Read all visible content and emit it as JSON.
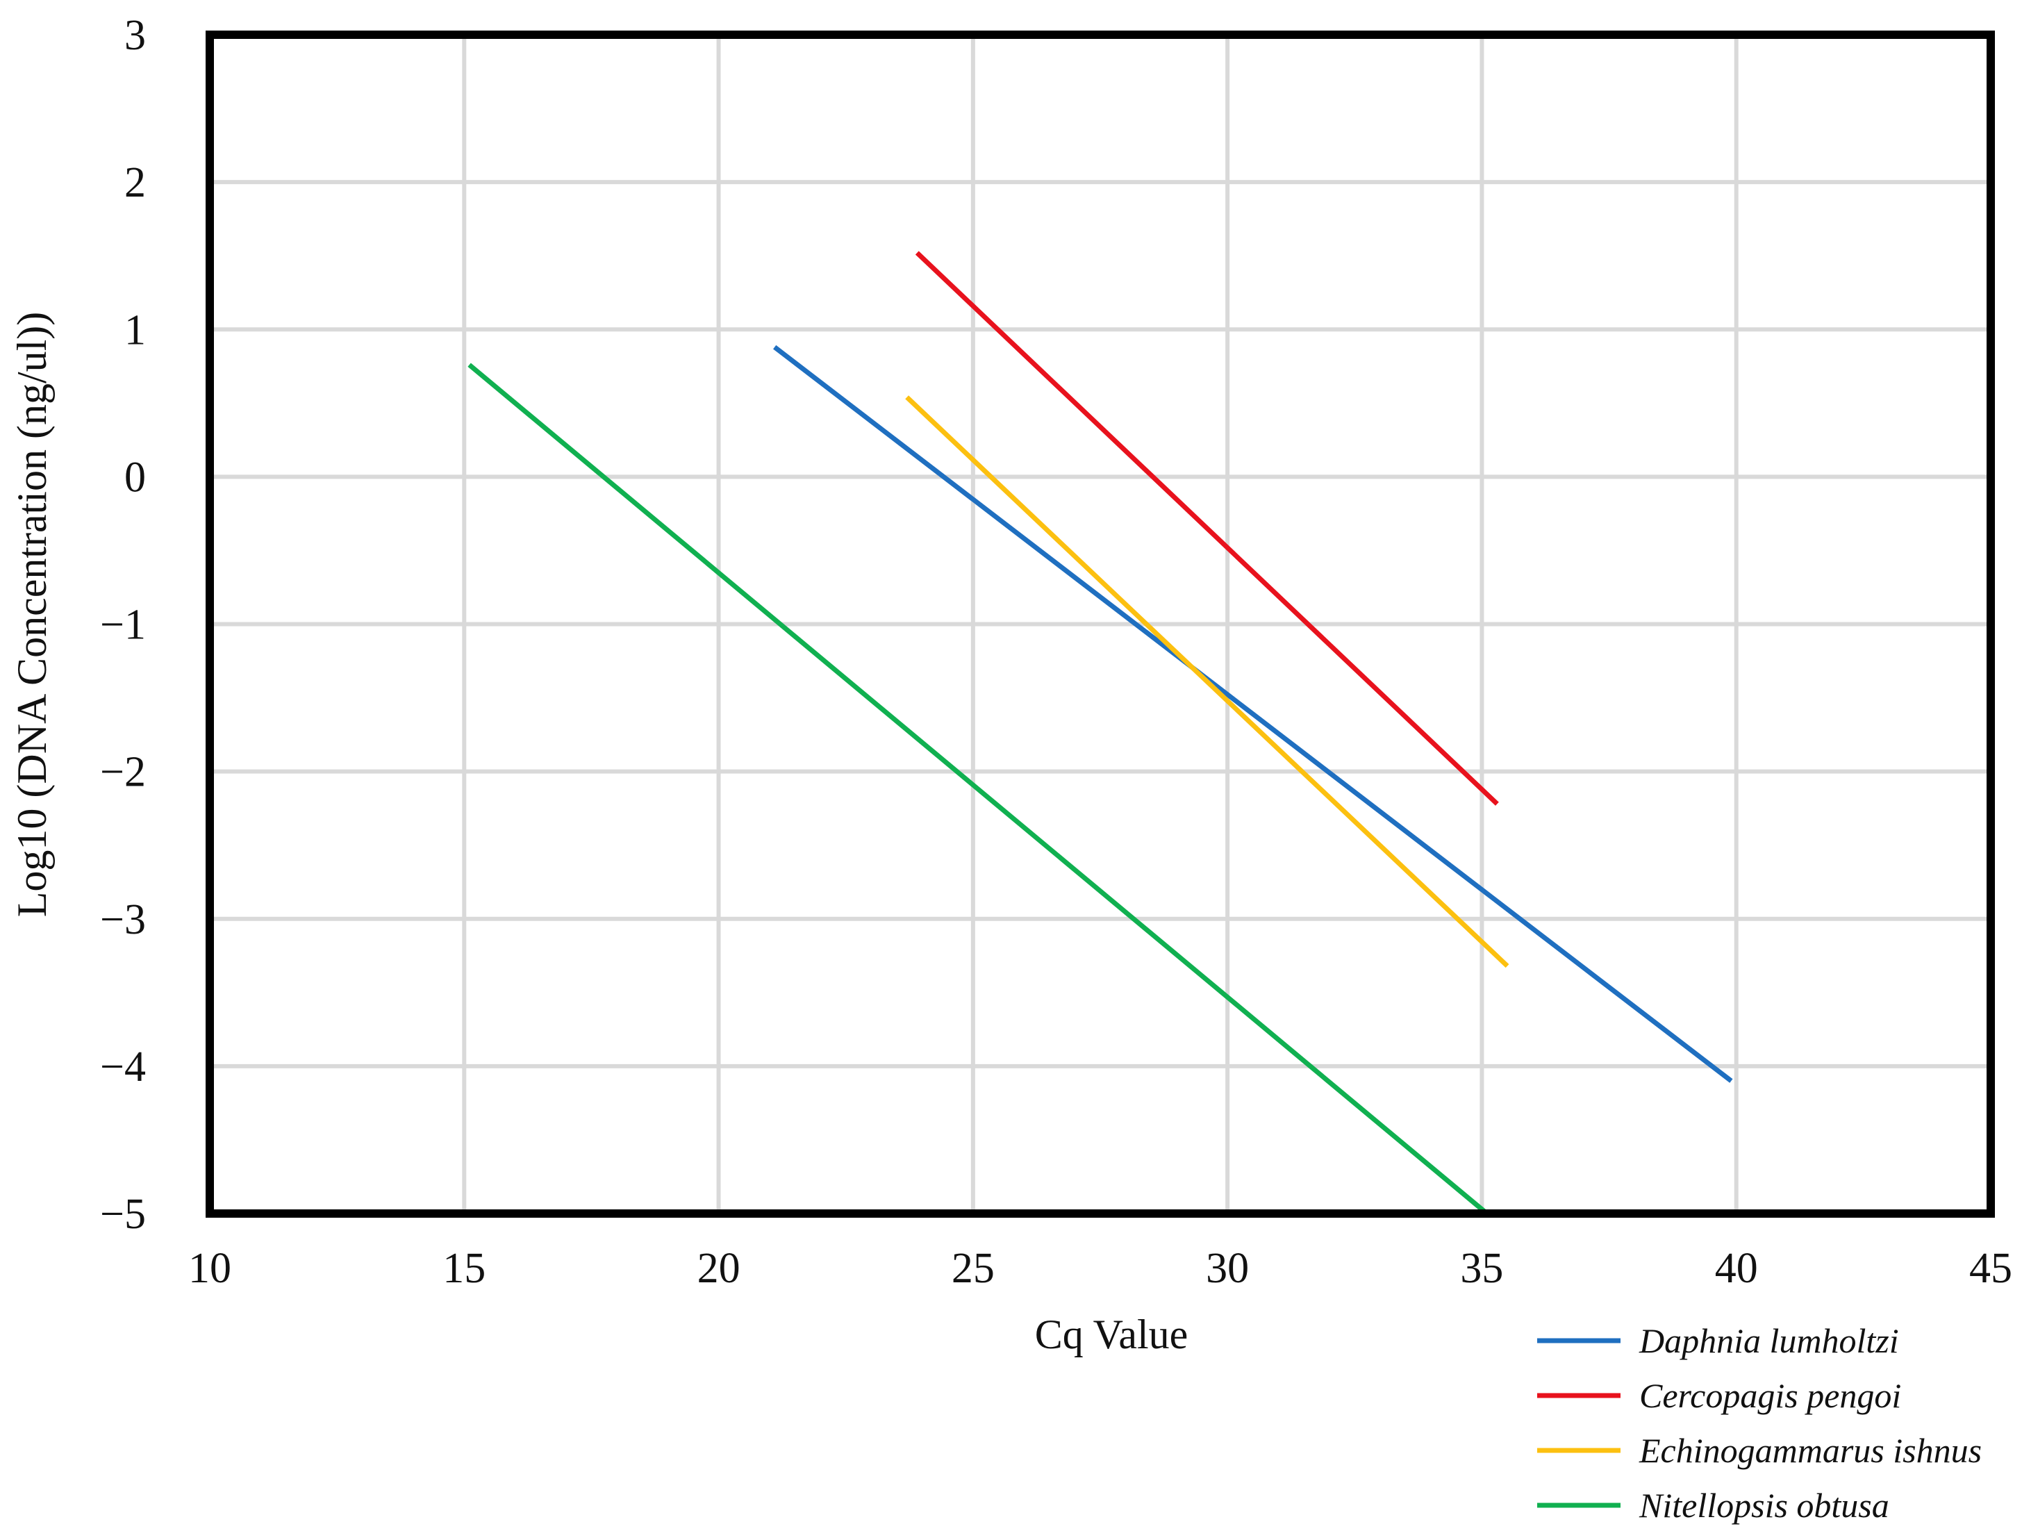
{
  "chart_data": {
    "type": "line",
    "title": "",
    "xlabel": "Cq Value",
    "ylabel": "Log10 (DNA Concentration (ng/ul))",
    "xlim": [
      10,
      45
    ],
    "ylim": [
      -5,
      3
    ],
    "xticks": [
      10,
      15,
      20,
      25,
      30,
      35,
      40,
      45
    ],
    "yticks": [
      3,
      2,
      1,
      0,
      -1,
      -2,
      -3,
      -4,
      -5
    ],
    "xtick_labels": [
      "10",
      "15",
      "20",
      "25",
      "30",
      "35",
      "40",
      "45"
    ],
    "ytick_labels": [
      "3",
      "2",
      "1",
      "0",
      "−1",
      "−2",
      "−3",
      "−4",
      "−5"
    ],
    "grid": true,
    "legend_position": "bottom-right",
    "series": [
      {
        "name": "Daphnia lumholtzi",
        "color": "#1f6fc0",
        "x": [
          21.1,
          39.9
        ],
        "y": [
          0.88,
          -4.1
        ]
      },
      {
        "name": "Cercopagis pengoi",
        "color": "#e8121d",
        "x": [
          23.9,
          35.3
        ],
        "y": [
          1.52,
          -2.22
        ]
      },
      {
        "name": "Echinogammarus ishnus",
        "color": "#fcc010",
        "x": [
          23.7,
          35.5
        ],
        "y": [
          0.54,
          -3.32
        ]
      },
      {
        "name": "Nitellopsis obtusa",
        "color": "#10b050",
        "x": [
          15.1,
          35.1
        ],
        "y": [
          0.76,
          -5.0
        ]
      }
    ]
  }
}
